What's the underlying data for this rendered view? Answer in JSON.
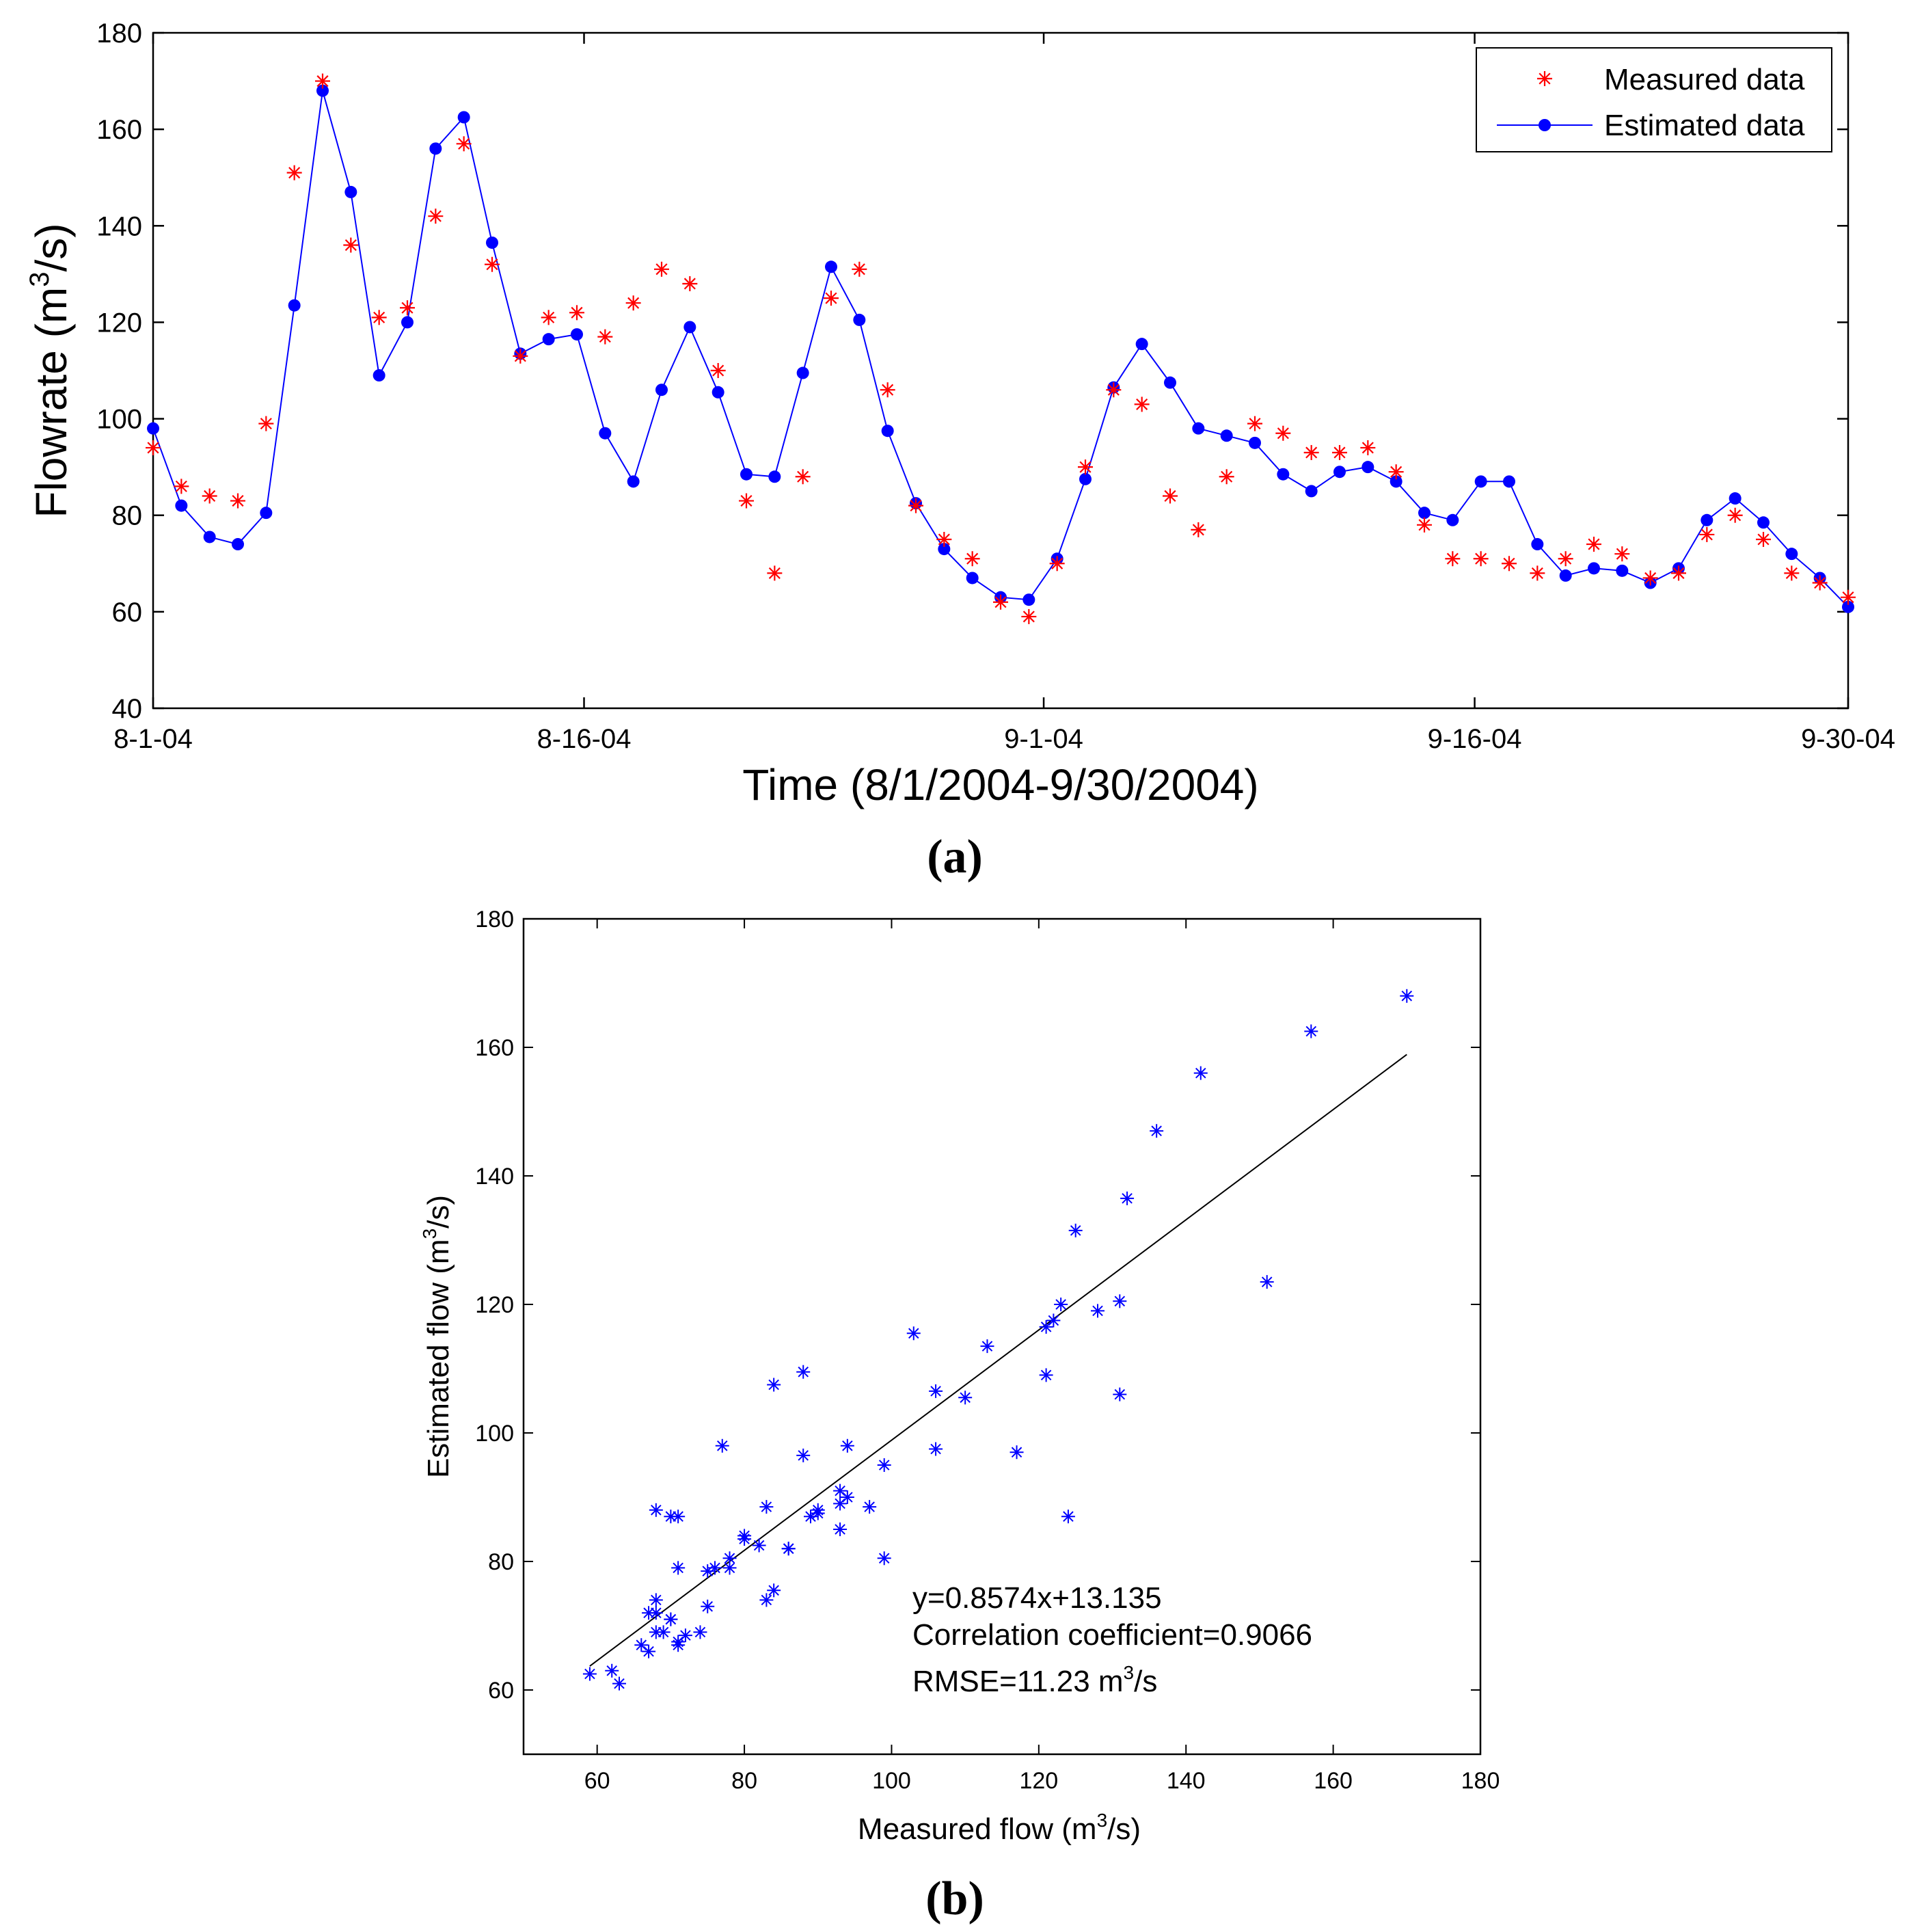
{
  "chart_data": [
    {
      "type": "line",
      "panel_label": "(a)",
      "xlabel": "Time (8/1/2004-9/30/2004)",
      "ylabel": {
        "pre": "Flowrate (m",
        "sup": "3",
        "post": "/s)"
      },
      "ylim": [
        40,
        180
      ],
      "yticks": [
        "40",
        "60",
        "80",
        "100",
        "120",
        "140",
        "160",
        "180"
      ],
      "xlim": [
        0,
        59
      ],
      "xtick_positions": [
        0,
        15,
        31,
        46,
        59
      ],
      "xticklabels": [
        "8-1-04",
        "8-16-04",
        "9-1-04",
        "9-16-04",
        "9-30-04"
      ],
      "legend": {
        "location": "top-right",
        "entries": [
          "Measured data",
          "Estimated data"
        ]
      },
      "colors": {
        "measured": "#ff0000",
        "estimated": "#0000ff"
      },
      "series": [
        {
          "name": "Measured data",
          "style": "asterisk-markers",
          "values": [
            94,
            86,
            84,
            83,
            99,
            151,
            170,
            136,
            121,
            123,
            142,
            157,
            132,
            113,
            121,
            122,
            117,
            124,
            131,
            128,
            110,
            83,
            68,
            88,
            125,
            131,
            106,
            82,
            75,
            71,
            62,
            59,
            70,
            90,
            106,
            103,
            84,
            77,
            88,
            99,
            97,
            93,
            93,
            94,
            89,
            78,
            71,
            71,
            70,
            68,
            71,
            74,
            72,
            67,
            68,
            76,
            80,
            75,
            68,
            66,
            63
          ]
        },
        {
          "name": "Estimated data",
          "style": "line-with-dots",
          "values": [
            98,
            82,
            75.5,
            74,
            80.5,
            123.5,
            168,
            147,
            109,
            120,
            156,
            162.5,
            136.5,
            113.5,
            116.5,
            117.5,
            97,
            87,
            106,
            119,
            105.5,
            88.5,
            88,
            109.5,
            131.5,
            120.5,
            97.5,
            82.5,
            73,
            67,
            63,
            62.5,
            71,
            87.5,
            106.5,
            115.5,
            107.5,
            98,
            96.5,
            95,
            88.5,
            85,
            89,
            90,
            87,
            80.5,
            79,
            87,
            87,
            74,
            67.5,
            69,
            68.5,
            66,
            69,
            79,
            83.5,
            78.5,
            72,
            67,
            61
          ]
        }
      ]
    },
    {
      "type": "scatter",
      "panel_label": "(b)",
      "xlabel": {
        "pre": "Measured flow (m",
        "sup": "3",
        "post": "/s)"
      },
      "ylabel": {
        "pre": "Estimated flow (m",
        "sup": "3",
        "post": "/s)"
      },
      "xlim": [
        50,
        180
      ],
      "ylim": [
        50,
        180
      ],
      "xticks": [
        "60",
        "80",
        "100",
        "120",
        "140",
        "160",
        "180"
      ],
      "yticks": [
        "60",
        "80",
        "100",
        "120",
        "140",
        "160",
        "180"
      ],
      "marker_color": "#0000ff",
      "fit_line": {
        "slope": 0.8574,
        "intercept": 13.135,
        "x_range": [
          59,
          170
        ]
      },
      "annotations": {
        "equation": "y=0.8574x+13.135",
        "correlation": "Correlation coefficient=0.9066",
        "rmse": {
          "pre": "RMSE=11.23 m",
          "sup": "3",
          "post": "/s"
        }
      },
      "points": [
        [
          94,
          98
        ],
        [
          86,
          82
        ],
        [
          84,
          75.5
        ],
        [
          83,
          74
        ],
        [
          99,
          80.5
        ],
        [
          151,
          123.5
        ],
        [
          170,
          168
        ],
        [
          136,
          147
        ],
        [
          121,
          109
        ],
        [
          123,
          120
        ],
        [
          142,
          156
        ],
        [
          157,
          162.5
        ],
        [
          132,
          136.5
        ],
        [
          113,
          113.5
        ],
        [
          121,
          116.5
        ],
        [
          122,
          117.5
        ],
        [
          117,
          97
        ],
        [
          124,
          87
        ],
        [
          131,
          106
        ],
        [
          128,
          119
        ],
        [
          110,
          105.5
        ],
        [
          83,
          88.5
        ],
        [
          68,
          88
        ],
        [
          88,
          109.5
        ],
        [
          125,
          131.5
        ],
        [
          131,
          120.5
        ],
        [
          106,
          97.5
        ],
        [
          82,
          82.5
        ],
        [
          75,
          73
        ],
        [
          71,
          67
        ],
        [
          62,
          63
        ],
        [
          59,
          62.5
        ],
        [
          70,
          71
        ],
        [
          90,
          87.5
        ],
        [
          106,
          106.5
        ],
        [
          103,
          115.5
        ],
        [
          84,
          107.5
        ],
        [
          77,
          98
        ],
        [
          88,
          96.5
        ],
        [
          99,
          95
        ],
        [
          97,
          88.5
        ],
        [
          93,
          85
        ],
        [
          93,
          89
        ],
        [
          94,
          90
        ],
        [
          89,
          87
        ],
        [
          78,
          80.5
        ],
        [
          71,
          79
        ],
        [
          71,
          87
        ],
        [
          70,
          87
        ],
        [
          68,
          74
        ],
        [
          71,
          67.5
        ],
        [
          74,
          69
        ],
        [
          72,
          68.5
        ],
        [
          67,
          66
        ],
        [
          68,
          69
        ],
        [
          76,
          79
        ],
        [
          80,
          83.5
        ],
        [
          75,
          78.5
        ],
        [
          68,
          72
        ],
        [
          66,
          67
        ],
        [
          63,
          61
        ],
        [
          86,
          82
        ],
        [
          80,
          84
        ],
        [
          90,
          88
        ],
        [
          93,
          91
        ],
        [
          78,
          79
        ],
        [
          67,
          72
        ],
        [
          69,
          69
        ],
        [
          70,
          71
        ]
      ]
    }
  ]
}
